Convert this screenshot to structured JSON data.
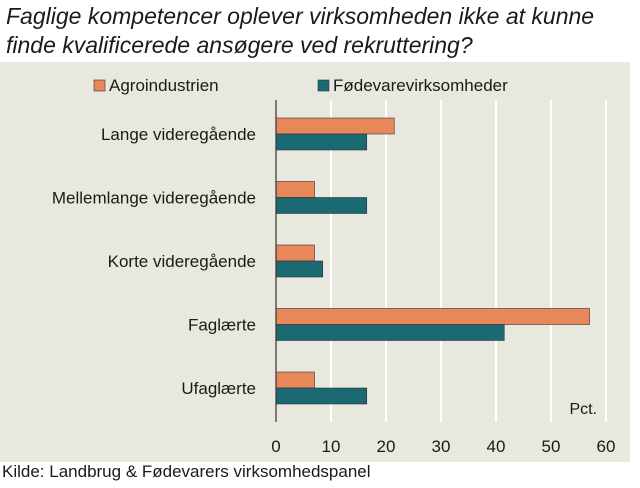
{
  "chart_data": {
    "type": "bar",
    "orientation": "horizontal",
    "title": "Faglige kompetencer oplever virksomheden ikke at kunne finde kvalificerede ansøgere ved rekruttering?",
    "categories": [
      "Lange videregående",
      "Mellemlange videregående",
      "Korte videregående",
      "Faglærte",
      "Ufaglærte"
    ],
    "series": [
      {
        "name": "Agroindustrien",
        "color": "#e8875a",
        "values": [
          21.5,
          7,
          7,
          57,
          7
        ]
      },
      {
        "name": "Fødevarevirksomheder",
        "color": "#1b6a73",
        "values": [
          16.5,
          16.5,
          8.5,
          41.5,
          16.5
        ]
      }
    ],
    "xlim": [
      0,
      60
    ],
    "xticks": [
      0,
      10,
      20,
      30,
      40,
      50,
      60
    ],
    "unit_label": "Pct.",
    "legend_position": "top",
    "grid": true
  },
  "source": "Kilde: Landbrug & Fødevarers virksomhedspanel"
}
